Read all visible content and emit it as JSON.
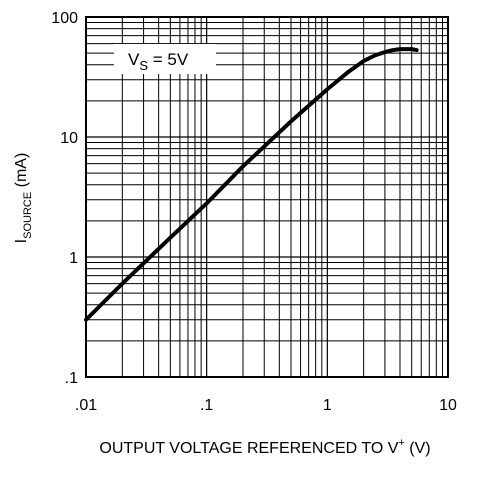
{
  "chart_data": {
    "type": "line",
    "xscale": "log",
    "yscale": "log",
    "xlim": [
      0.01,
      10
    ],
    "ylim": [
      0.1,
      100
    ],
    "grid": true,
    "x_ticks": [
      ".01",
      ".1",
      "1",
      "10"
    ],
    "y_ticks": [
      ".1",
      "1",
      "10",
      "100"
    ],
    "xlabel": {
      "main": "OUTPUT VOLTAGE REFERENCED TO V",
      "sup": "+",
      "unit": " (V)"
    },
    "ylabel": {
      "main": "I",
      "sub": "SOURCE",
      "unit": " (mA)"
    },
    "annotation": {
      "main": "V",
      "sub": "S",
      "rest": " = 5V"
    },
    "series": [
      {
        "x": [
          0.01,
          0.02,
          0.05,
          0.1,
          0.2,
          0.5,
          1.0,
          1.5,
          2.0,
          2.5,
          3.0,
          3.5,
          4.0,
          4.5,
          5.0,
          5.5
        ],
        "y": [
          0.3,
          0.6,
          1.45,
          2.8,
          5.7,
          13.5,
          25,
          35,
          43,
          48,
          51,
          53,
          54,
          54,
          54,
          53
        ]
      }
    ]
  }
}
